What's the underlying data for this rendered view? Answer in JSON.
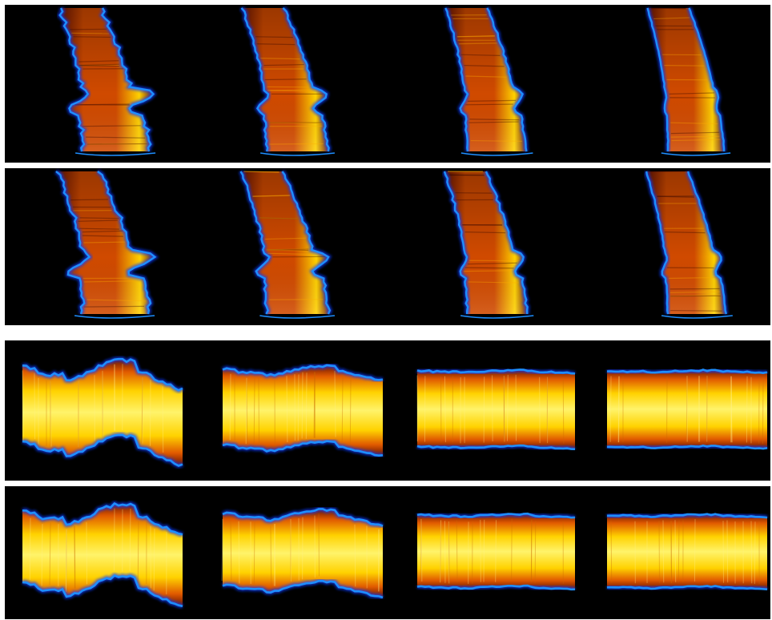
{
  "figure": {
    "panel_count": 4,
    "tiles_per_panel": 4,
    "rows": [
      {
        "kind": "curved",
        "tiles": [
          {
            "distortion": 1.0,
            "bend": 0.9
          },
          {
            "distortion": 0.55,
            "bend": 0.85
          },
          {
            "distortion": 0.35,
            "bend": 0.75
          },
          {
            "distortion": 0.15,
            "bend": 0.7
          }
        ]
      },
      {
        "kind": "curved",
        "tiles": [
          {
            "distortion": 1.0,
            "bend": 0.95
          },
          {
            "distortion": 0.6,
            "bend": 0.9
          },
          {
            "distortion": 0.45,
            "bend": 0.8
          },
          {
            "distortion": 0.3,
            "bend": 0.75
          }
        ]
      },
      {
        "kind": "flattened",
        "tiles": [
          {
            "distortion": 1.0
          },
          {
            "distortion": 0.45
          },
          {
            "distortion": 0.1
          },
          {
            "distortion": 0.08
          }
        ]
      },
      {
        "kind": "flattened",
        "tiles": [
          {
            "distortion": 1.0
          },
          {
            "distortion": 0.5
          },
          {
            "distortion": 0.12
          },
          {
            "distortion": 0.1
          }
        ]
      }
    ],
    "colors": {
      "background": "#000000",
      "separator": "#ffffff",
      "boundary": "#1e8fff",
      "boundary_glow": "#0a3cff",
      "tissue_dark": "#6a1200",
      "tissue_mid": "#d04a00",
      "tissue_bright": "#ffd200",
      "tissue_peak": "#fff36a"
    }
  }
}
